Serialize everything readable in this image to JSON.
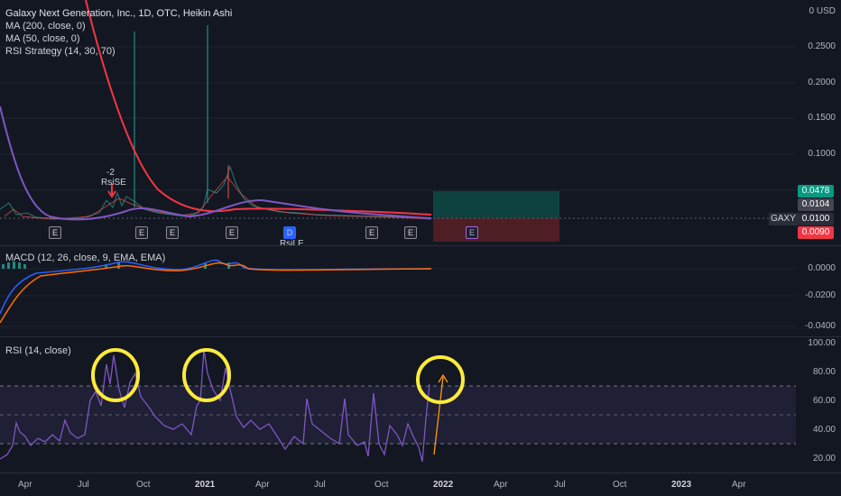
{
  "main": {
    "title": "Galaxy Next Generation, Inc., 1D, OTC, Heikin Ashi",
    "indicators": [
      "MA (200, close, 0)",
      "MA (50, close, 0)",
      "RSI Strategy (14, 30, 70)"
    ],
    "price_axis": [
      "0 USD",
      "0.2500",
      "0.2000",
      "0.1500",
      "0.1000"
    ],
    "tags": {
      "target": "0.0478",
      "entry_ref": "0.0104",
      "ticker": "GAXY",
      "last_price": "0.0100",
      "stop": "0.0090"
    },
    "signal_count": "-2",
    "signal_name": "RsiSE",
    "partial_label": "RsiLE",
    "earnings_marker": "E",
    "dividend_marker": "D"
  },
  "macd": {
    "label": "MACD (12, 26, close, 9, EMA, EMA)",
    "axis": [
      "0.0000",
      "-0.0200",
      "-0.0400"
    ]
  },
  "rsi": {
    "label": "RSI (14, close)",
    "axis": [
      "100.00",
      "80.00",
      "60.00",
      "40.00",
      "20.00"
    ]
  },
  "time_axis": [
    "Apr",
    "Jul",
    "Oct",
    "2021",
    "Apr",
    "Jul",
    "Oct",
    "2022",
    "Apr",
    "Jul",
    "Oct",
    "2023",
    "Apr"
  ],
  "colors": {
    "background": "#131722",
    "ma200": "#f23645",
    "ma50": "#7e57c2",
    "candles_up": "#26a69a",
    "candles_down": "#ef5350",
    "rsi_line": "#7e57c2",
    "highlight": "#ffeb3b",
    "target_tag": "#089981",
    "stop_tag": "#f23645"
  }
}
